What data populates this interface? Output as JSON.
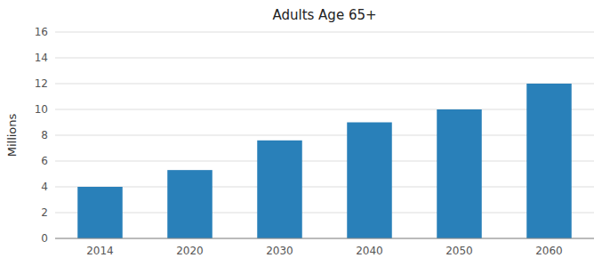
{
  "chart_data": {
    "type": "bar",
    "title": "Adults Age 65+",
    "ylabel": "Millions",
    "categories": [
      "2014",
      "2020",
      "2030",
      "2040",
      "2050",
      "2060"
    ],
    "values": [
      4.0,
      5.3,
      7.6,
      9.0,
      10.0,
      12.0
    ],
    "color": "#2980B9",
    "ylim": [
      0,
      16
    ],
    "yticks": [
      0,
      2,
      4,
      6,
      8,
      10,
      12,
      14,
      16
    ],
    "grid": true
  }
}
